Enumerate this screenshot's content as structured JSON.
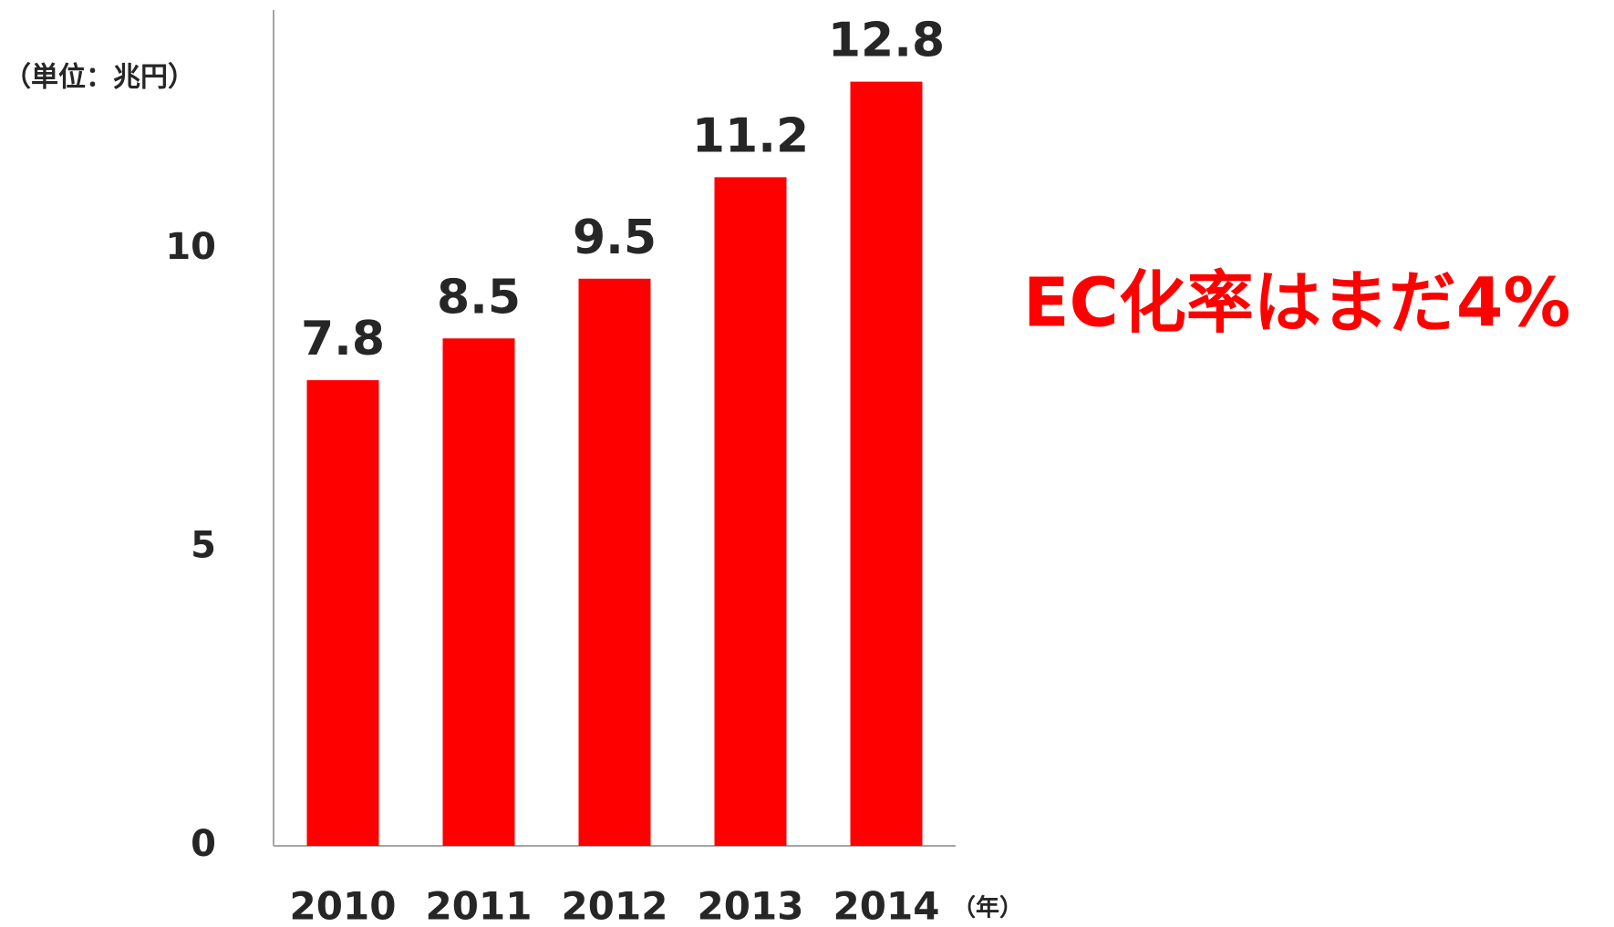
{
  "chart_data": {
    "type": "bar",
    "unit_label": "（単位：兆円）",
    "x_unit_label": "（年）",
    "annotation": "EC化率はまだ4%",
    "categories": [
      "2010",
      "2011",
      "2012",
      "2013",
      "2014"
    ],
    "values": [
      7.8,
      8.5,
      9.5,
      11.2,
      12.8
    ],
    "color": "#ff0000",
    "ylim": [
      0,
      14
    ],
    "yticks": [
      0,
      5,
      10
    ],
    "grid": false
  }
}
